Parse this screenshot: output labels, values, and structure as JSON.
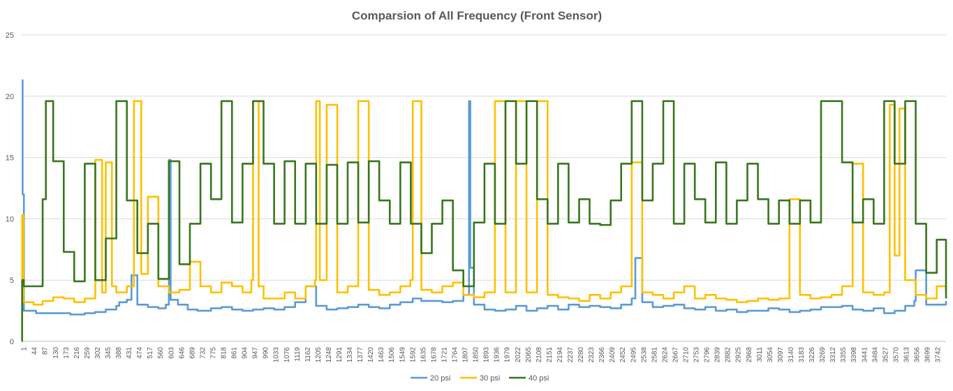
{
  "chart_data": {
    "type": "line",
    "title": "Comparsion of All Frequency (Front Sensor)",
    "xlabel": "",
    "ylabel": "",
    "ylim": [
      0,
      25
    ],
    "yticks": [
      0,
      5,
      10,
      15,
      20,
      25
    ],
    "x_range": [
      1,
      3780
    ],
    "x_tick_labels": [
      "1",
      "44",
      "87",
      "130",
      "173",
      "216",
      "259",
      "302",
      "345",
      "388",
      "431",
      "474",
      "517",
      "560",
      "603",
      "646",
      "689",
      "732",
      "775",
      "818",
      "861",
      "904",
      "947",
      "990",
      "1033",
      "1076",
      "1119",
      "1162",
      "1205",
      "1248",
      "1291",
      "1334",
      "1377",
      "1420",
      "1463",
      "1506",
      "1549",
      "1592",
      "1635",
      "1678",
      "1721",
      "1764",
      "1807",
      "1850",
      "1893",
      "1936",
      "1979",
      "2022",
      "2065",
      "2108",
      "2151",
      "2194",
      "2237",
      "2280",
      "2323",
      "2366",
      "2409",
      "2452",
      "2495",
      "2538",
      "2581",
      "2624",
      "2667",
      "2710",
      "2753",
      "2796",
      "2839",
      "2882",
      "2925",
      "2968",
      "3011",
      "3054",
      "3097",
      "3140",
      "3183",
      "3226",
      "3269",
      "3312",
      "3355",
      "3398",
      "3441",
      "3484",
      "3527",
      "3570",
      "3613",
      "3656",
      "3699",
      "3742"
    ],
    "grid": true,
    "legend_position": "bottom",
    "series": [
      {
        "name": "20 psi",
        "color": "#5b9bd5",
        "x": [
          1,
          5,
          10,
          60,
          130,
          200,
          259,
          300,
          345,
          388,
          400,
          431,
          450,
          474,
          517,
          560,
          590,
          603,
          610,
          640,
          680,
          720,
          775,
          818,
          861,
          904,
          947,
          990,
          1033,
          1076,
          1119,
          1162,
          1205,
          1248,
          1291,
          1334,
          1377,
          1420,
          1463,
          1506,
          1549,
          1600,
          1635,
          1678,
          1721,
          1764,
          1807,
          1830,
          1835,
          1850,
          1893,
          1936,
          1979,
          2022,
          2065,
          2108,
          2151,
          2194,
          2237,
          2280,
          2323,
          2366,
          2409,
          2452,
          2495,
          2510,
          2538,
          2581,
          2624,
          2667,
          2710,
          2753,
          2796,
          2839,
          2882,
          2925,
          2968,
          3011,
          3054,
          3097,
          3140,
          3183,
          3226,
          3269,
          3312,
          3355,
          3398,
          3441,
          3484,
          3527,
          3570,
          3613,
          3650,
          3656,
          3699,
          3742,
          3780
        ],
        "values": [
          21.3,
          12,
          2.5,
          2.3,
          2.3,
          2.2,
          2.3,
          2.4,
          2.6,
          2.9,
          3.2,
          3.4,
          5.4,
          3.0,
          2.8,
          2.7,
          3.0,
          14.8,
          3.4,
          3.0,
          2.6,
          2.5,
          2.7,
          2.8,
          2.6,
          2.5,
          2.6,
          2.7,
          2.6,
          2.8,
          3.2,
          4.5,
          2.9,
          2.6,
          2.7,
          2.8,
          3.0,
          2.8,
          2.7,
          3.0,
          3.2,
          3.5,
          3.3,
          3.3,
          3.2,
          3.3,
          3.8,
          19.6,
          6.0,
          3.0,
          2.6,
          2.5,
          2.6,
          2.9,
          2.5,
          2.7,
          2.9,
          2.6,
          3.0,
          2.8,
          2.9,
          2.8,
          2.7,
          3.0,
          3.5,
          6.8,
          3.2,
          2.8,
          2.9,
          3.0,
          2.7,
          2.6,
          2.8,
          2.5,
          2.6,
          2.4,
          2.5,
          2.5,
          2.7,
          2.6,
          2.4,
          2.5,
          2.6,
          2.8,
          2.8,
          2.9,
          2.6,
          2.5,
          2.7,
          2.3,
          2.5,
          2.9,
          3.3,
          5.8,
          3.0,
          3.0,
          3.3
        ]
      },
      {
        "name": "30 psi",
        "color": "#ffc000",
        "x": [
          1,
          3,
          8,
          50,
          87,
          130,
          173,
          216,
          259,
          302,
          330,
          345,
          370,
          388,
          431,
          460,
          474,
          490,
          517,
          560,
          603,
          646,
          689,
          732,
          775,
          818,
          861,
          904,
          940,
          947,
          970,
          990,
          1033,
          1076,
          1119,
          1162,
          1200,
          1205,
          1220,
          1248,
          1291,
          1334,
          1377,
          1420,
          1463,
          1506,
          1549,
          1590,
          1600,
          1635,
          1678,
          1721,
          1764,
          1807,
          1850,
          1893,
          1936,
          1979,
          2022,
          2065,
          2108,
          2151,
          2194,
          2237,
          2280,
          2323,
          2366,
          2409,
          2452,
          2495,
          2538,
          2581,
          2624,
          2667,
          2710,
          2753,
          2796,
          2839,
          2882,
          2925,
          2968,
          3011,
          3054,
          3097,
          3140,
          3183,
          3226,
          3269,
          3312,
          3355,
          3398,
          3441,
          3484,
          3527,
          3550,
          3570,
          3590,
          3613,
          3656,
          3699,
          3742,
          3780
        ],
        "values": [
          5,
          10.3,
          3.2,
          3.0,
          3.3,
          3.6,
          3.5,
          3.2,
          3.5,
          14.8,
          4.0,
          14.6,
          4.5,
          4.0,
          4.5,
          19.6,
          19.6,
          5.5,
          11.8,
          4.5,
          4.0,
          4.2,
          6.5,
          4.5,
          4.0,
          4.8,
          4.5,
          4.0,
          5.0,
          19.6,
          4.5,
          3.5,
          3.5,
          4.0,
          3.5,
          4.5,
          5.0,
          19.6,
          5.0,
          19.3,
          4.0,
          4.5,
          19.6,
          4.2,
          3.8,
          4.0,
          4.5,
          5.0,
          19.6,
          4.2,
          4.0,
          4.5,
          4.8,
          3.8,
          3.6,
          4.0,
          19.6,
          4.0,
          19.6,
          4.0,
          19.6,
          3.8,
          3.6,
          3.5,
          3.3,
          3.8,
          3.5,
          4.0,
          4.5,
          14.6,
          4.0,
          3.8,
          3.5,
          4.0,
          4.5,
          3.5,
          3.8,
          3.5,
          3.4,
          3.2,
          3.3,
          3.5,
          3.4,
          3.5,
          11.6,
          3.8,
          3.5,
          3.6,
          3.8,
          4.5,
          14.5,
          4.0,
          3.8,
          4.0,
          19.3,
          7.0,
          19.0,
          5.0,
          3.8,
          3.5,
          4.5,
          4.0
        ]
      },
      {
        "name": "40 psi",
        "color": "#38761d",
        "x": [
          1,
          3,
          10,
          40,
          87,
          100,
          130,
          173,
          216,
          259,
          302,
          345,
          388,
          431,
          474,
          517,
          560,
          603,
          646,
          689,
          732,
          775,
          818,
          861,
          904,
          947,
          990,
          1033,
          1076,
          1119,
          1162,
          1205,
          1248,
          1291,
          1334,
          1377,
          1420,
          1463,
          1506,
          1549,
          1592,
          1635,
          1678,
          1721,
          1764,
          1807,
          1850,
          1893,
          1936,
          1979,
          2022,
          2065,
          2108,
          2151,
          2194,
          2237,
          2280,
          2323,
          2366,
          2409,
          2452,
          2495,
          2538,
          2581,
          2624,
          2667,
          2710,
          2753,
          2796,
          2839,
          2882,
          2925,
          2968,
          3011,
          3054,
          3097,
          3140,
          3183,
          3226,
          3269,
          3312,
          3355,
          3398,
          3441,
          3484,
          3527,
          3570,
          3613,
          3656,
          3699,
          3742,
          3780
        ],
        "values": [
          0,
          5.0,
          4.5,
          4.5,
          11.6,
          19.6,
          14.7,
          7.3,
          4.9,
          14.5,
          5.0,
          8.4,
          19.6,
          11.5,
          7.2,
          9.6,
          5.1,
          14.7,
          6.3,
          9.6,
          14.5,
          11.6,
          19.6,
          9.7,
          14.5,
          19.6,
          14.5,
          9.6,
          14.7,
          9.6,
          14.5,
          9.6,
          14.4,
          9.6,
          14.6,
          9.7,
          14.7,
          11.5,
          9.6,
          14.6,
          9.6,
          7.2,
          9.6,
          11.5,
          5.8,
          4.5,
          9.7,
          14.5,
          9.6,
          19.6,
          14.5,
          19.6,
          11.6,
          9.6,
          14.5,
          9.7,
          11.6,
          9.6,
          9.5,
          11.5,
          14.5,
          19.6,
          11.5,
          14.5,
          19.6,
          9.6,
          14.5,
          11.6,
          9.7,
          14.6,
          9.6,
          11.5,
          14.5,
          11.6,
          9.6,
          11.5,
          9.6,
          11.5,
          9.7,
          19.6,
          19.6,
          14.6,
          9.7,
          11.6,
          9.6,
          19.6,
          14.5,
          19.6,
          9.6,
          5.6,
          8.3,
          3.5
        ]
      }
    ]
  }
}
